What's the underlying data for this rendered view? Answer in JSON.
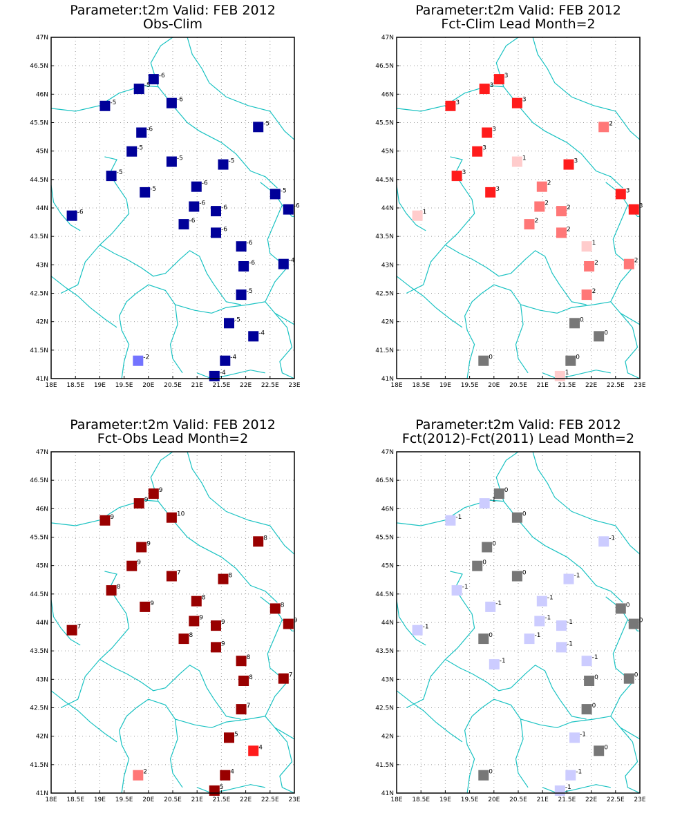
{
  "chart_data": [
    {
      "type": "scatter",
      "title": "Parameter:t2m Valid: FEB 2012",
      "subtitle": "Obs-Clim",
      "xlim": [
        18,
        23
      ],
      "ylim": [
        41,
        47
      ],
      "x_ticks": [
        "18E",
        "18.5E",
        "19E",
        "19.5E",
        "20E",
        "20.5E",
        "21E",
        "21.5E",
        "22E",
        "22.5E",
        "23E"
      ],
      "y_ticks": [
        "41N",
        "41.5N",
        "42N",
        "42.5N",
        "43N",
        "43.5N",
        "44N",
        "44.5N",
        "45N",
        "45.5N",
        "46N",
        "46.5N",
        "47N"
      ],
      "grid": true,
      "points": [
        {
          "lon": 20.1,
          "lat": 46.27,
          "v": "-6",
          "c": "#000099"
        },
        {
          "lon": 19.8,
          "lat": 46.1,
          "v": "-5",
          "c": "#000099"
        },
        {
          "lon": 19.1,
          "lat": 45.8,
          "v": "-5",
          "c": "#000099"
        },
        {
          "lon": 20.47,
          "lat": 45.85,
          "v": "-6",
          "c": "#000099"
        },
        {
          "lon": 22.25,
          "lat": 45.43,
          "v": "-5",
          "c": "#000099"
        },
        {
          "lon": 19.85,
          "lat": 45.33,
          "v": "-6",
          "c": "#000099"
        },
        {
          "lon": 19.65,
          "lat": 45.0,
          "v": "-5",
          "c": "#000099"
        },
        {
          "lon": 20.47,
          "lat": 44.82,
          "v": "-5",
          "c": "#000099"
        },
        {
          "lon": 21.53,
          "lat": 44.77,
          "v": "-5",
          "c": "#000099"
        },
        {
          "lon": 19.23,
          "lat": 44.57,
          "v": "-5",
          "c": "#000099"
        },
        {
          "lon": 20.98,
          "lat": 44.38,
          "v": "-6",
          "c": "#000099"
        },
        {
          "lon": 19.92,
          "lat": 44.28,
          "v": "-5",
          "c": "#000099"
        },
        {
          "lon": 22.6,
          "lat": 44.25,
          "v": "-5",
          "c": "#000099"
        },
        {
          "lon": 20.93,
          "lat": 44.03,
          "v": "-6",
          "c": "#000099"
        },
        {
          "lon": 21.38,
          "lat": 43.95,
          "v": "-6",
          "c": "#000099"
        },
        {
          "lon": 22.87,
          "lat": 43.98,
          "v": "-6",
          "c": "#000099"
        },
        {
          "lon": 18.42,
          "lat": 43.87,
          "v": "-6",
          "c": "#000099"
        },
        {
          "lon": 20.72,
          "lat": 43.72,
          "v": "-6",
          "c": "#000099"
        },
        {
          "lon": 21.38,
          "lat": 43.57,
          "v": "-6",
          "c": "#000099"
        },
        {
          "lon": 21.9,
          "lat": 43.33,
          "v": "-6",
          "c": "#000099"
        },
        {
          "lon": 21.95,
          "lat": 42.98,
          "v": "-6",
          "c": "#000099"
        },
        {
          "lon": 22.77,
          "lat": 43.02,
          "v": "-4",
          "c": "#000099"
        },
        {
          "lon": 21.9,
          "lat": 42.48,
          "v": "-5",
          "c": "#000099"
        },
        {
          "lon": 21.65,
          "lat": 41.98,
          "v": "-5",
          "c": "#000099"
        },
        {
          "lon": 22.15,
          "lat": 41.75,
          "v": "-4",
          "c": "#000099"
        },
        {
          "lon": 19.78,
          "lat": 41.32,
          "v": "-2",
          "c": "#7373ff"
        },
        {
          "lon": 21.57,
          "lat": 41.32,
          "v": "-4",
          "c": "#000099"
        },
        {
          "lon": 21.35,
          "lat": 41.05,
          "v": "-4",
          "c": "#000099"
        }
      ]
    },
    {
      "type": "scatter",
      "title": "Parameter:t2m Valid: FEB 2012",
      "subtitle": "Fct-Clim Lead Month=2",
      "xlim": [
        18,
        23
      ],
      "ylim": [
        41,
        47
      ],
      "x_ticks": [
        "18E",
        "18.5E",
        "19E",
        "19.5E",
        "20E",
        "20.5E",
        "21E",
        "21.5E",
        "22E",
        "22.5E",
        "23E"
      ],
      "y_ticks": [
        "41N",
        "41.5N",
        "42N",
        "42.5N",
        "43N",
        "43.5N",
        "44N",
        "44.5N",
        "45N",
        "45.5N",
        "46N",
        "46.5N",
        "47N"
      ],
      "grid": true,
      "points": [
        {
          "lon": 20.1,
          "lat": 46.27,
          "v": "3",
          "c": "#ff1c1c"
        },
        {
          "lon": 19.8,
          "lat": 46.1,
          "v": "3",
          "c": "#ff1c1c"
        },
        {
          "lon": 19.1,
          "lat": 45.8,
          "v": "3",
          "c": "#ff1c1c"
        },
        {
          "lon": 20.47,
          "lat": 45.85,
          "v": "3",
          "c": "#ff1c1c"
        },
        {
          "lon": 22.25,
          "lat": 45.43,
          "v": "2",
          "c": "#ff7777"
        },
        {
          "lon": 19.85,
          "lat": 45.33,
          "v": "3",
          "c": "#ff1c1c"
        },
        {
          "lon": 19.65,
          "lat": 45.0,
          "v": "3",
          "c": "#ff1c1c"
        },
        {
          "lon": 20.47,
          "lat": 44.82,
          "v": "1",
          "c": "#ffcccc"
        },
        {
          "lon": 21.53,
          "lat": 44.77,
          "v": "3",
          "c": "#ff1c1c"
        },
        {
          "lon": 19.23,
          "lat": 44.57,
          "v": "3",
          "c": "#ff1c1c"
        },
        {
          "lon": 20.98,
          "lat": 44.38,
          "v": "2",
          "c": "#ff7777"
        },
        {
          "lon": 19.92,
          "lat": 44.28,
          "v": "3",
          "c": "#ff1c1c"
        },
        {
          "lon": 22.6,
          "lat": 44.25,
          "v": "3",
          "c": "#ff1c1c"
        },
        {
          "lon": 20.93,
          "lat": 44.03,
          "v": "2",
          "c": "#ff7777"
        },
        {
          "lon": 21.38,
          "lat": 43.95,
          "v": "2",
          "c": "#ff7777"
        },
        {
          "lon": 22.87,
          "lat": 43.98,
          "v": "3",
          "c": "#ff1c1c"
        },
        {
          "lon": 18.42,
          "lat": 43.87,
          "v": "1",
          "c": "#ffcccc"
        },
        {
          "lon": 20.72,
          "lat": 43.72,
          "v": "2",
          "c": "#ff7777"
        },
        {
          "lon": 21.38,
          "lat": 43.57,
          "v": "2",
          "c": "#ff7777"
        },
        {
          "lon": 21.9,
          "lat": 43.33,
          "v": "1",
          "c": "#ffcccc"
        },
        {
          "lon": 21.95,
          "lat": 42.98,
          "v": "2",
          "c": "#ff7777"
        },
        {
          "lon": 22.77,
          "lat": 43.02,
          "v": "2",
          "c": "#ff7777"
        },
        {
          "lon": 21.9,
          "lat": 42.48,
          "v": "2",
          "c": "#ff7777"
        },
        {
          "lon": 21.65,
          "lat": 41.98,
          "v": "0",
          "c": "#777777"
        },
        {
          "lon": 22.15,
          "lat": 41.75,
          "v": "0",
          "c": "#777777"
        },
        {
          "lon": 19.78,
          "lat": 41.32,
          "v": "0",
          "c": "#777777"
        },
        {
          "lon": 21.57,
          "lat": 41.32,
          "v": "0",
          "c": "#777777"
        },
        {
          "lon": 21.35,
          "lat": 41.05,
          "v": "1",
          "c": "#ffcccc"
        }
      ]
    },
    {
      "type": "scatter",
      "title": "Parameter:t2m Valid: FEB 2012",
      "subtitle": "Fct-Obs Lead Month=2",
      "xlim": [
        18,
        23
      ],
      "ylim": [
        41,
        47
      ],
      "x_ticks": [
        "18E",
        "18.5E",
        "19E",
        "19.5E",
        "20E",
        "20.5E",
        "21E",
        "21.5E",
        "22E",
        "22.5E",
        "23E"
      ],
      "y_ticks": [
        "41N",
        "41.5N",
        "42N",
        "42.5N",
        "43N",
        "43.5N",
        "44N",
        "44.5N",
        "45N",
        "45.5N",
        "46N",
        "46.5N",
        "47N"
      ],
      "grid": true,
      "points": [
        {
          "lon": 20.1,
          "lat": 46.27,
          "v": "9",
          "c": "#990000"
        },
        {
          "lon": 19.8,
          "lat": 46.1,
          "v": "9",
          "c": "#990000"
        },
        {
          "lon": 19.1,
          "lat": 45.8,
          "v": "9",
          "c": "#990000"
        },
        {
          "lon": 20.47,
          "lat": 45.85,
          "v": "10",
          "c": "#990000"
        },
        {
          "lon": 22.25,
          "lat": 45.43,
          "v": "8",
          "c": "#990000"
        },
        {
          "lon": 19.85,
          "lat": 45.33,
          "v": "9",
          "c": "#990000"
        },
        {
          "lon": 19.65,
          "lat": 45.0,
          "v": "9",
          "c": "#990000"
        },
        {
          "lon": 20.47,
          "lat": 44.82,
          "v": "7",
          "c": "#990000"
        },
        {
          "lon": 21.53,
          "lat": 44.77,
          "v": "8",
          "c": "#990000"
        },
        {
          "lon": 19.23,
          "lat": 44.57,
          "v": "8",
          "c": "#990000"
        },
        {
          "lon": 20.98,
          "lat": 44.38,
          "v": "8",
          "c": "#990000"
        },
        {
          "lon": 19.92,
          "lat": 44.28,
          "v": "9",
          "c": "#990000"
        },
        {
          "lon": 22.6,
          "lat": 44.25,
          "v": "8",
          "c": "#990000"
        },
        {
          "lon": 20.93,
          "lat": 44.03,
          "v": "9",
          "c": "#990000"
        },
        {
          "lon": 21.38,
          "lat": 43.95,
          "v": "9",
          "c": "#990000"
        },
        {
          "lon": 22.87,
          "lat": 43.98,
          "v": "9",
          "c": "#990000"
        },
        {
          "lon": 18.42,
          "lat": 43.87,
          "v": "7",
          "c": "#990000"
        },
        {
          "lon": 20.72,
          "lat": 43.72,
          "v": "8",
          "c": "#990000"
        },
        {
          "lon": 21.38,
          "lat": 43.57,
          "v": "9",
          "c": "#990000"
        },
        {
          "lon": 21.9,
          "lat": 43.33,
          "v": "8",
          "c": "#990000"
        },
        {
          "lon": 21.95,
          "lat": 42.98,
          "v": "8",
          "c": "#990000"
        },
        {
          "lon": 22.77,
          "lat": 43.02,
          "v": "7",
          "c": "#990000"
        },
        {
          "lon": 21.9,
          "lat": 42.48,
          "v": "7",
          "c": "#990000"
        },
        {
          "lon": 21.65,
          "lat": 41.98,
          "v": "5",
          "c": "#990000"
        },
        {
          "lon": 22.15,
          "lat": 41.75,
          "v": "4",
          "c": "#ff1c1c"
        },
        {
          "lon": 19.78,
          "lat": 41.32,
          "v": "2",
          "c": "#ff7777"
        },
        {
          "lon": 21.57,
          "lat": 41.32,
          "v": "4",
          "c": "#990000"
        },
        {
          "lon": 21.35,
          "lat": 41.05,
          "v": "5",
          "c": "#990000"
        }
      ]
    },
    {
      "type": "scatter",
      "title": "Parameter:t2m Valid: FEB 2012",
      "subtitle": "Fct(2012)-Fct(2011) Lead Month=2",
      "xlim": [
        18,
        23
      ],
      "ylim": [
        41,
        47
      ],
      "x_ticks": [
        "18E",
        "18.5E",
        "19E",
        "19.5E",
        "20E",
        "20.5E",
        "21E",
        "21.5E",
        "22E",
        "22.5E",
        "23E"
      ],
      "y_ticks": [
        "41N",
        "41.5N",
        "42N",
        "42.5N",
        "43N",
        "43.5N",
        "44N",
        "44.5N",
        "45N",
        "45.5N",
        "46N",
        "46.5N",
        "47N"
      ],
      "grid": true,
      "points": [
        {
          "lon": 20.1,
          "lat": 46.27,
          "v": "0",
          "c": "#777777"
        },
        {
          "lon": 19.8,
          "lat": 46.1,
          "v": "-1",
          "c": "#ccccff"
        },
        {
          "lon": 19.1,
          "lat": 45.8,
          "v": "-1",
          "c": "#ccccff"
        },
        {
          "lon": 20.47,
          "lat": 45.85,
          "v": "0",
          "c": "#777777"
        },
        {
          "lon": 22.25,
          "lat": 45.43,
          "v": "-1",
          "c": "#ccccff"
        },
        {
          "lon": 19.85,
          "lat": 45.33,
          "v": "0",
          "c": "#777777"
        },
        {
          "lon": 19.65,
          "lat": 45.0,
          "v": "0",
          "c": "#777777"
        },
        {
          "lon": 20.47,
          "lat": 44.82,
          "v": "0",
          "c": "#777777"
        },
        {
          "lon": 21.53,
          "lat": 44.77,
          "v": "-1",
          "c": "#ccccff"
        },
        {
          "lon": 19.23,
          "lat": 44.57,
          "v": "-1",
          "c": "#ccccff"
        },
        {
          "lon": 20.98,
          "lat": 44.38,
          "v": "-1",
          "c": "#ccccff"
        },
        {
          "lon": 19.92,
          "lat": 44.28,
          "v": "-1",
          "c": "#ccccff"
        },
        {
          "lon": 22.6,
          "lat": 44.25,
          "v": "0",
          "c": "#777777"
        },
        {
          "lon": 20.93,
          "lat": 44.03,
          "v": "-1",
          "c": "#ccccff"
        },
        {
          "lon": 21.38,
          "lat": 43.95,
          "v": "-1",
          "c": "#ccccff"
        },
        {
          "lon": 22.87,
          "lat": 43.98,
          "v": "0",
          "c": "#777777"
        },
        {
          "lon": 18.42,
          "lat": 43.87,
          "v": "-1",
          "c": "#ccccff"
        },
        {
          "lon": 20.72,
          "lat": 43.72,
          "v": "-1",
          "c": "#ccccff"
        },
        {
          "lon": 19.78,
          "lat": 43.72,
          "v": "0",
          "c": "#777777"
        },
        {
          "lon": 21.38,
          "lat": 43.57,
          "v": "-1",
          "c": "#ccccff"
        },
        {
          "lon": 21.9,
          "lat": 43.33,
          "v": "-1",
          "c": "#ccccff"
        },
        {
          "lon": 20.0,
          "lat": 43.27,
          "v": "-1",
          "c": "#ccccff"
        },
        {
          "lon": 21.95,
          "lat": 42.98,
          "v": "0",
          "c": "#777777"
        },
        {
          "lon": 22.77,
          "lat": 43.02,
          "v": "0",
          "c": "#777777"
        },
        {
          "lon": 21.9,
          "lat": 42.48,
          "v": "0",
          "c": "#777777"
        },
        {
          "lon": 21.65,
          "lat": 41.98,
          "v": "-1",
          "c": "#ccccff"
        },
        {
          "lon": 22.15,
          "lat": 41.75,
          "v": "0",
          "c": "#777777"
        },
        {
          "lon": 19.78,
          "lat": 41.32,
          "v": "0",
          "c": "#777777"
        },
        {
          "lon": 21.57,
          "lat": 41.32,
          "v": "-1",
          "c": "#ccccff"
        },
        {
          "lon": 21.35,
          "lat": 41.05,
          "v": "-1",
          "c": "#ccccff"
        }
      ]
    }
  ],
  "style": {
    "frame_color": "#000000",
    "grid_color": "#999999",
    "border_color": "#19c2c2"
  }
}
